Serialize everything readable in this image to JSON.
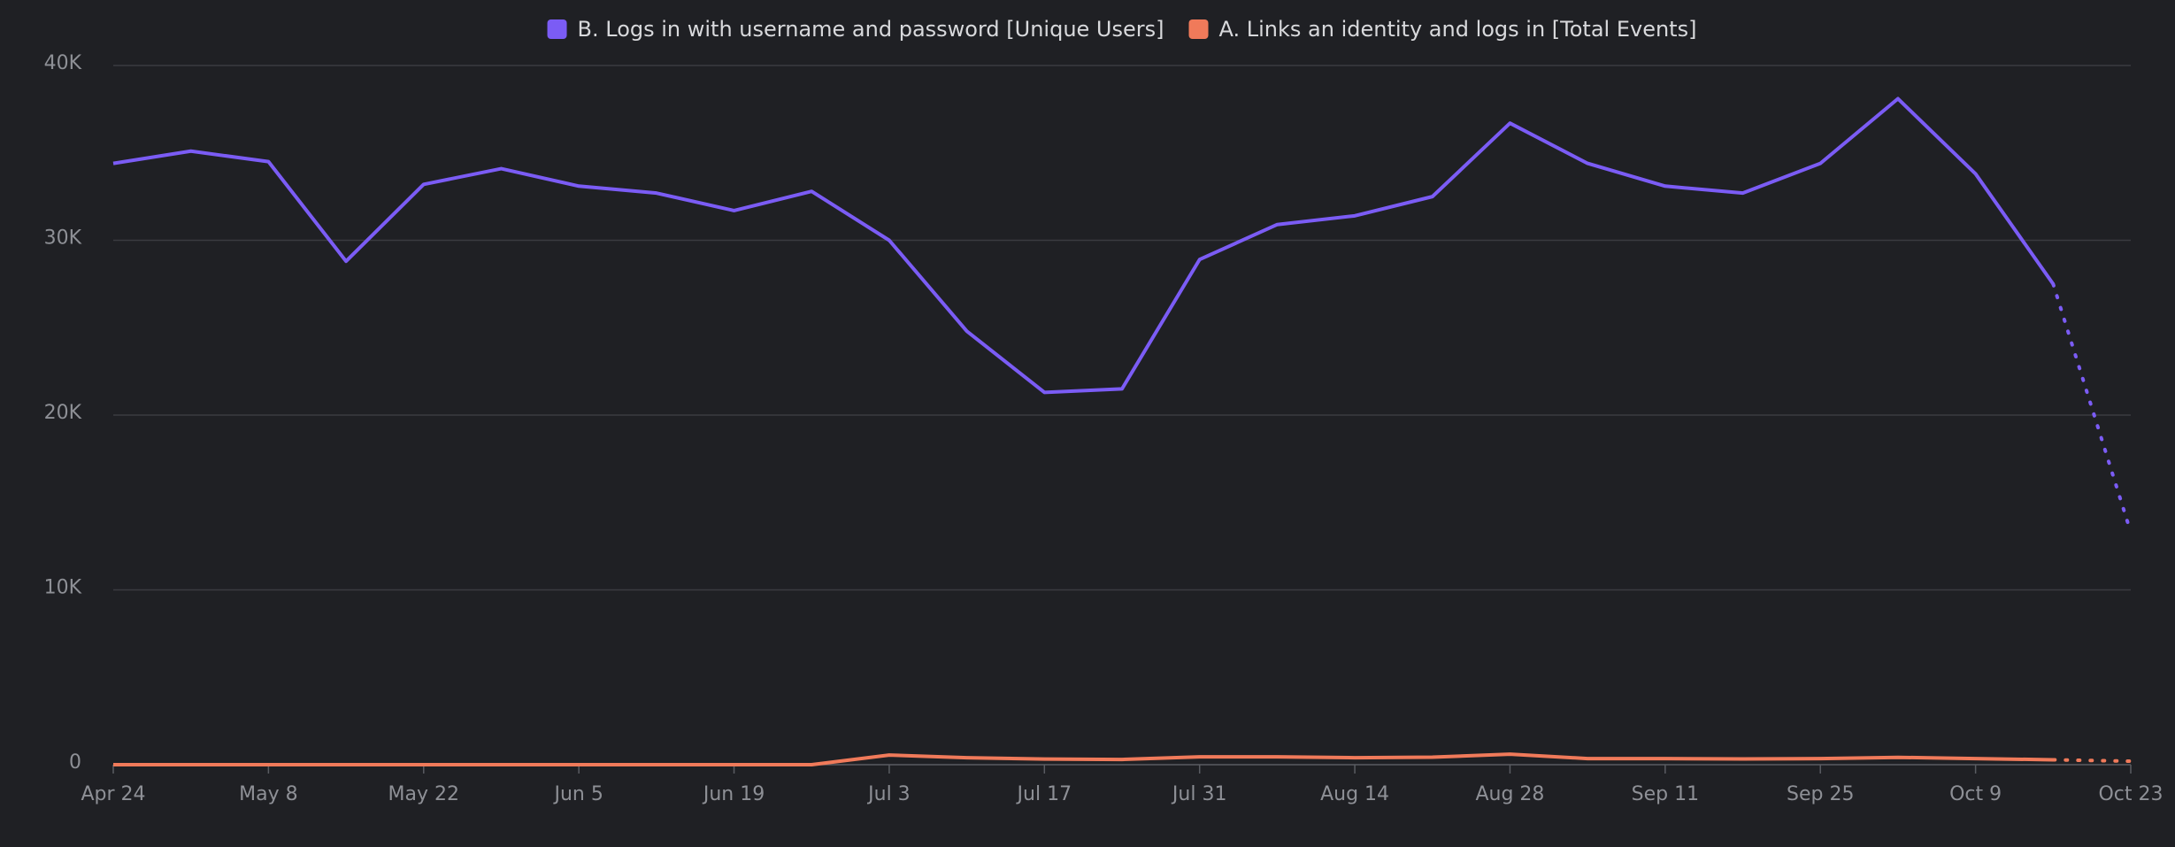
{
  "chart_data": {
    "type": "line",
    "categories": [
      "Apr 24",
      null,
      "May 8",
      null,
      "May 22",
      null,
      "Jun 5",
      null,
      "Jun 19",
      null,
      "Jul 3",
      null,
      "Jul 17",
      null,
      "Jul 31",
      null,
      "Aug 14",
      null,
      "Aug 28",
      null,
      "Sep 11",
      null,
      "Sep 25",
      null,
      "Oct 9",
      null,
      "Oct 23"
    ],
    "series": [
      {
        "name": "B. Logs in with username and password [Unique Users]",
        "color": "#7b5cf5",
        "values": [
          34400,
          35100,
          34500,
          28800,
          33200,
          34100,
          33100,
          32700,
          31700,
          32800,
          30000,
          24800,
          21300,
          21500,
          28900,
          30900,
          31400,
          32500,
          36700,
          34400,
          33100,
          32700,
          34400,
          38100,
          33800,
          27500,
          13300
        ]
      },
      {
        "name": "A. Links an identity and logs in [Total Events]",
        "color": "#f07a5a",
        "values": [
          0,
          0,
          0,
          0,
          0,
          0,
          0,
          0,
          0,
          0,
          550,
          400,
          320,
          300,
          450,
          450,
          400,
          430,
          600,
          350,
          350,
          330,
          350,
          420,
          350,
          280,
          200
        ]
      }
    ],
    "ylim": [
      0,
      40000
    ],
    "yticks": [
      0,
      {
        "value": 10000,
        "label": "10K"
      },
      {
        "value": 20000,
        "label": "20K"
      },
      {
        "value": 30000,
        "label": "30K"
      },
      {
        "value": 40000,
        "label": "40K"
      }
    ],
    "grid": true,
    "legend": "top",
    "dotted_last_segment": true
  }
}
